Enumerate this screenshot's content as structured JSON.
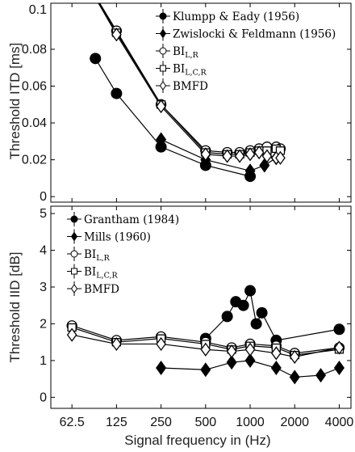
{
  "chart_data": [
    {
      "type": "line",
      "ylabel": "Threshold ITD [ms]",
      "xscale": "log",
      "ylim": [
        -0.003,
        0.105
      ],
      "y_ticks": [
        0,
        0.02,
        0.04,
        0.06,
        0.08
      ],
      "y_tick_labels": [
        "0",
        "0.02",
        "0.04",
        "0.06",
        "0.08"
      ],
      "y_top_label": "0.1",
      "grid": false,
      "legend_position": "top-right",
      "legend": [
        {
          "label": "Klumpp & Eady (1956)",
          "sub": "",
          "marker": "circle"
        },
        {
          "label": "Zwislocki & Feldmann (1956)",
          "sub": "",
          "marker": "diamond"
        },
        {
          "label": "BI",
          "sub": "L,R",
          "marker": "open-circle"
        },
        {
          "label": "BI",
          "sub": "L,C,R",
          "marker": "open-square"
        },
        {
          "label": "BMFD",
          "sub": "",
          "marker": "open-diamond"
        }
      ],
      "series": [
        {
          "name": "Klumpp & Eady (1956)",
          "marker": "circle",
          "x": [
            90,
            125,
            250,
            500,
            1000
          ],
          "y": [
            0.075,
            0.056,
            0.027,
            0.017,
            0.011
          ]
        },
        {
          "name": "Zwislocki & Feldmann (1956)",
          "marker": "diamond",
          "x": [
            250,
            500,
            1000,
            1250,
            1500
          ],
          "y": [
            0.031,
            0.02,
            0.014,
            0.017,
            0.021
          ]
        },
        {
          "name": "BI L,R",
          "marker": "open-circle",
          "x": [
            62.5,
            125,
            250,
            500,
            700,
            850,
            1000,
            1150,
            1300,
            1500,
            1600
          ],
          "y": [
            0.13,
            0.09,
            0.05,
            0.025,
            0.024,
            0.024,
            0.025,
            0.026,
            0.027,
            0.027,
            0.026
          ]
        },
        {
          "name": "BI L,C,R",
          "marker": "open-square",
          "x": [
            62.5,
            125,
            250,
            500,
            700,
            850,
            1000,
            1150,
            1300,
            1500,
            1600
          ],
          "y": [
            0.13,
            0.089,
            0.05,
            0.024,
            0.023,
            0.023,
            0.024,
            0.025,
            0.025,
            0.026,
            0.025
          ]
        },
        {
          "name": "BMFD",
          "marker": "open-diamond",
          "x": [
            62.5,
            125,
            250,
            500,
            700,
            850,
            1000,
            1150,
            1300,
            1500,
            1600
          ],
          "y": [
            0.13,
            0.088,
            0.049,
            0.023,
            0.022,
            0.022,
            0.023,
            0.024,
            0.022,
            0.021,
            0.021
          ]
        }
      ]
    },
    {
      "type": "line",
      "ylabel": "Threshold IID [dB]",
      "xlabel": "Signal frequency in (Hz)",
      "xscale": "log",
      "x_ticks": [
        62.5,
        125,
        250,
        500,
        1000,
        2000,
        4000
      ],
      "x_tick_labels": [
        "62.5",
        "125",
        "250",
        "500",
        "1000",
        "2000",
        "4000"
      ],
      "ylim": [
        -0.3,
        5.2
      ],
      "y_ticks": [
        0,
        1,
        2,
        3,
        4,
        5
      ],
      "y_tick_labels": [
        "0",
        "1",
        "2",
        "3",
        "4",
        "5"
      ],
      "grid": false,
      "legend_position": "top-left",
      "legend": [
        {
          "label": "Grantham (1984)",
          "sub": "",
          "marker": "circle"
        },
        {
          "label": "Mills (1960)",
          "sub": "",
          "marker": "diamond"
        },
        {
          "label": "BI",
          "sub": "L,R",
          "marker": "open-circle"
        },
        {
          "label": "BI",
          "sub": "L,C,R",
          "marker": "open-square"
        },
        {
          "label": "BMFD",
          "sub": "",
          "marker": "open-diamond"
        }
      ],
      "series": [
        {
          "name": "Grantham (1984)",
          "marker": "circle",
          "x": [
            500,
            700,
            800,
            900,
            1000,
            1100,
            1200,
            1500,
            4000
          ],
          "y": [
            1.6,
            2.2,
            2.6,
            2.5,
            2.9,
            2.0,
            2.3,
            1.55,
            1.85
          ]
        },
        {
          "name": "Mills (1960)",
          "marker": "diamond",
          "x": [
            250,
            500,
            750,
            1000,
            1500,
            2000,
            3000,
            4000
          ],
          "y": [
            0.8,
            0.75,
            0.95,
            1.0,
            0.8,
            0.55,
            0.6,
            0.8
          ]
        },
        {
          "name": "BI L,R",
          "marker": "open-circle",
          "x": [
            62.5,
            125,
            250,
            500,
            750,
            1000,
            1500,
            2000,
            4000
          ],
          "y": [
            1.95,
            1.55,
            1.65,
            1.5,
            1.35,
            1.45,
            1.4,
            1.2,
            1.35
          ]
        },
        {
          "name": "BI L,C,R",
          "marker": "open-square",
          "x": [
            62.5,
            125,
            250,
            500,
            750,
            1000,
            1500,
            2000,
            4000
          ],
          "y": [
            1.9,
            1.5,
            1.6,
            1.45,
            1.3,
            1.4,
            1.35,
            1.15,
            1.3
          ]
        },
        {
          "name": "BMFD",
          "marker": "open-diamond",
          "x": [
            62.5,
            125,
            250,
            500,
            750,
            1000,
            1500,
            2000,
            4000
          ],
          "y": [
            1.7,
            1.45,
            1.45,
            1.3,
            1.25,
            1.3,
            1.2,
            1.1,
            1.35
          ]
        }
      ]
    }
  ]
}
